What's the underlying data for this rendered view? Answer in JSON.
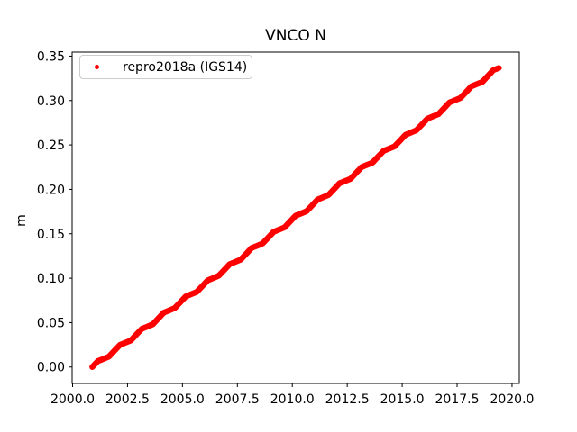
{
  "figure": {
    "background": "#ffffff"
  },
  "chart_data": {
    "type": "scatter",
    "title": "VNCO N",
    "xlabel": "",
    "ylabel": "m",
    "xlim": [
      1999.98,
      2020.33
    ],
    "ylim": [
      -0.0185,
      0.3545
    ],
    "grid": false,
    "xticks": [
      2000.0,
      2002.5,
      2005.0,
      2007.5,
      2010.0,
      2012.5,
      2015.0,
      2017.5,
      2020.0
    ],
    "xtick_labels": [
      "2000.0",
      "2002.5",
      "2005.0",
      "2007.5",
      "2010.0",
      "2012.5",
      "2015.0",
      "2017.5",
      "2020.0"
    ],
    "yticks": [
      0.0,
      0.05,
      0.1,
      0.15,
      0.2,
      0.25,
      0.3,
      0.35
    ],
    "ytick_labels": [
      "0.00",
      "0.05",
      "0.10",
      "0.15",
      "0.20",
      "0.25",
      "0.30",
      "0.35"
    ],
    "legend": {
      "position": "upper left",
      "entries": [
        {
          "label": "repro2018a (IGS14)",
          "marker": "dot",
          "color": "#ff0000"
        }
      ]
    },
    "series": [
      {
        "name": "repro2018a (IGS14)",
        "color": "#ff0000",
        "marker": "dot",
        "x": [
          2000.9,
          2001.15,
          2001.4,
          2001.65,
          2001.9,
          2002.15,
          2002.4,
          2002.65,
          2002.9,
          2003.15,
          2003.4,
          2003.65,
          2003.9,
          2004.15,
          2004.4,
          2004.65,
          2004.9,
          2005.15,
          2005.4,
          2005.65,
          2005.9,
          2006.15,
          2006.4,
          2006.65,
          2006.9,
          2007.15,
          2007.4,
          2007.65,
          2007.9,
          2008.15,
          2008.4,
          2008.65,
          2008.9,
          2009.15,
          2009.4,
          2009.65,
          2009.9,
          2010.15,
          2010.4,
          2010.65,
          2010.9,
          2011.15,
          2011.4,
          2011.65,
          2011.9,
          2012.15,
          2012.4,
          2012.65,
          2012.9,
          2013.15,
          2013.4,
          2013.65,
          2013.9,
          2014.15,
          2014.4,
          2014.65,
          2014.9,
          2015.15,
          2015.4,
          2015.65,
          2015.9,
          2016.15,
          2016.4,
          2016.65,
          2016.9,
          2017.15,
          2017.4,
          2017.65,
          2017.9,
          2018.15,
          2018.4,
          2018.65,
          2018.9,
          2019.15,
          2019.4
        ],
        "y": [
          0.0,
          0.0066,
          0.0091,
          0.0117,
          0.0182,
          0.0248,
          0.0273,
          0.0299,
          0.0364,
          0.043,
          0.0455,
          0.0481,
          0.0546,
          0.0612,
          0.0637,
          0.0663,
          0.0728,
          0.0794,
          0.0819,
          0.0845,
          0.091,
          0.0976,
          0.1001,
          0.1027,
          0.1092,
          0.1158,
          0.1183,
          0.1209,
          0.1274,
          0.134,
          0.1365,
          0.1391,
          0.1456,
          0.1522,
          0.1547,
          0.1573,
          0.1638,
          0.1704,
          0.1729,
          0.1755,
          0.182,
          0.1886,
          0.1911,
          0.1937,
          0.2002,
          0.2068,
          0.2093,
          0.2119,
          0.2184,
          0.225,
          0.2275,
          0.2301,
          0.2366,
          0.2432,
          0.2457,
          0.2483,
          0.2548,
          0.2614,
          0.2639,
          0.2665,
          0.273,
          0.2796,
          0.2821,
          0.2847,
          0.2912,
          0.2978,
          0.3003,
          0.3029,
          0.3094,
          0.316,
          0.3185,
          0.3211,
          0.3276,
          0.3342,
          0.3367
        ]
      }
    ]
  }
}
